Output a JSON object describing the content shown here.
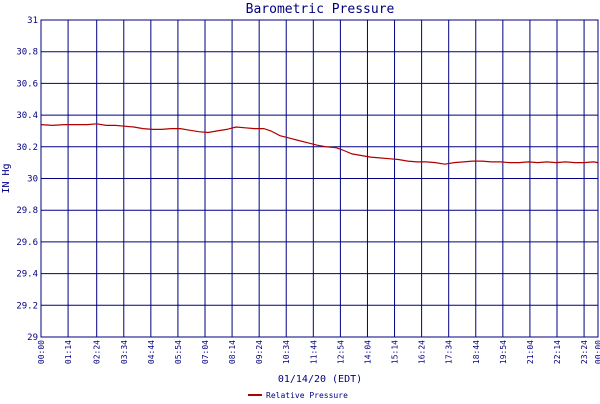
{
  "chart_data": {
    "type": "line",
    "title": "Barometric Pressure",
    "xlabel": "01/14/20 (EDT)",
    "ylabel": "IN Hg",
    "ylim": [
      29,
      31
    ],
    "y_ticks": [
      "29",
      "29.2",
      "29.4",
      "29.6",
      "29.8",
      "30",
      "30.2",
      "30.4",
      "30.6",
      "30.8",
      "31"
    ],
    "x_ticks": [
      "00:00",
      "01:14",
      "02:24",
      "03:34",
      "04:44",
      "05:54",
      "07:04",
      "08:14",
      "09:24",
      "10:34",
      "11:44",
      "12:54",
      "14:04",
      "15:14",
      "16:24",
      "17:34",
      "18:44",
      "19:54",
      "21:04",
      "22:14",
      "23:24",
      "00:00"
    ],
    "x_tick_hours": [
      0,
      1.1667,
      2.4,
      3.5667,
      4.7333,
      5.9,
      7.0667,
      8.2333,
      9.4,
      10.5667,
      11.7333,
      12.9,
      14.0667,
      15.2333,
      16.4,
      17.5667,
      18.7333,
      19.9,
      21.0667,
      22.2333,
      23.4,
      24
    ],
    "grid": true,
    "legend_position": "bottom",
    "series": [
      {
        "name": "Relative Pressure",
        "color": "#b00000",
        "x_hours": [
          0,
          0.5,
          1.0,
          1.5,
          2.0,
          2.4,
          2.8,
          3.2,
          3.6,
          4.0,
          4.4,
          4.8,
          5.2,
          5.6,
          6.0,
          6.4,
          6.8,
          7.2,
          7.6,
          8.0,
          8.4,
          8.8,
          9.2,
          9.6,
          9.9,
          10.3,
          10.7,
          11.1,
          11.5,
          11.9,
          12.3,
          12.7,
          13.0,
          13.4,
          13.8,
          14.2,
          14.6,
          15.0,
          15.4,
          15.8,
          16.2,
          16.6,
          17.0,
          17.4,
          17.8,
          18.2,
          18.6,
          19.0,
          19.4,
          19.8,
          20.2,
          20.6,
          21.0,
          21.4,
          21.8,
          22.2,
          22.6,
          23.0,
          23.4,
          23.8,
          24.0
        ],
        "values": [
          30.34,
          30.335,
          30.34,
          30.34,
          30.34,
          30.345,
          30.335,
          30.335,
          30.33,
          30.325,
          30.315,
          30.31,
          30.31,
          30.315,
          30.315,
          30.305,
          30.295,
          30.29,
          30.3,
          30.31,
          30.325,
          30.32,
          30.315,
          30.315,
          30.3,
          30.27,
          30.255,
          30.24,
          30.225,
          30.21,
          30.2,
          30.195,
          30.18,
          30.155,
          30.145,
          30.135,
          30.13,
          30.125,
          30.12,
          30.11,
          30.105,
          30.105,
          30.1,
          30.09,
          30.1,
          30.105,
          30.11,
          30.11,
          30.105,
          30.105,
          30.1,
          30.1,
          30.105,
          30.1,
          30.105,
          30.1,
          30.105,
          30.1,
          30.1,
          30.105,
          30.1
        ]
      }
    ]
  },
  "colors": {
    "frame": "#000080",
    "grid": "#000080",
    "line": "#b00000",
    "text": "#000080"
  }
}
